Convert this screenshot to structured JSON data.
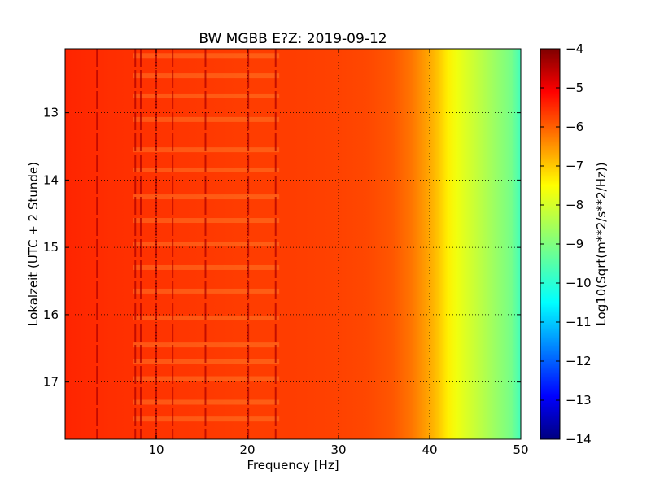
{
  "chart_data": {
    "type": "heatmap",
    "title": "BW MGBB E?Z: 2019-09-12",
    "xlabel": "Frequency [Hz]",
    "ylabel": "Lokalzeit (UTC + 2 Stunde)",
    "xlim": [
      0,
      50
    ],
    "ylim": [
      17.85,
      12.05
    ],
    "y_inverted": true,
    "x_ticks": [
      10,
      20,
      30,
      40,
      50
    ],
    "y_ticks": [
      13,
      14,
      15,
      16,
      17
    ],
    "grid": true,
    "colormap": "jet",
    "colorbar": {
      "label": "Log10(Sqrt(m**2/s**2/Hz))",
      "range": [
        -14,
        -4
      ],
      "ticks": [
        -4,
        -5,
        -6,
        -7,
        -8,
        -9,
        -10,
        -11,
        -12,
        -13,
        -14
      ]
    },
    "spectrum_profile": {
      "frequency_hz": [
        0,
        5,
        10,
        15,
        20,
        25,
        30,
        33,
        36,
        38,
        40,
        41,
        42,
        43,
        44,
        45,
        46,
        47,
        48,
        49,
        50
      ],
      "log10_amplitude": [
        -5.6,
        -5.7,
        -5.75,
        -5.8,
        -5.85,
        -5.85,
        -5.9,
        -5.95,
        -6.1,
        -6.4,
        -6.9,
        -7.2,
        -7.6,
        -7.9,
        -8.1,
        -8.3,
        -8.5,
        -8.7,
        -8.9,
        -9.1,
        -9.6
      ]
    },
    "vertical_lines_hz": [
      3.5,
      7.7,
      8.3,
      10.0,
      11.8,
      15.4,
      20.1,
      23.1
    ],
    "horizontal_bands_h": [
      12.15,
      12.45,
      12.75,
      13.1,
      13.55,
      13.85,
      14.25,
      14.6,
      14.95,
      15.3,
      15.65,
      16.05,
      16.45,
      16.7,
      16.95,
      17.3,
      17.55
    ]
  }
}
